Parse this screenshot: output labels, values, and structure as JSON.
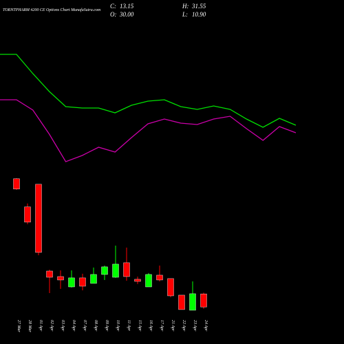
{
  "chart_data": [
    {
      "type": "candlestick",
      "title": "TORNTPHARM 4200 CE Options Chart MunafaSutra.com",
      "summary": [
        {
          "label": "C:",
          "value": "13.15"
        },
        {
          "label": "O:",
          "value": "30.00"
        },
        {
          "label": "H:",
          "value": "31.55"
        },
        {
          "label": "L:",
          "value": "10.90"
        }
      ],
      "categories": [
        "27 Mar",
        "28 Mar",
        "01 Apr",
        "02 Apr",
        "03 Apr",
        "04 Apr",
        "07 Apr",
        "08 Apr",
        "09 Apr",
        "10 Apr",
        "11 Apr",
        "15 Apr",
        "16 Apr",
        "17 Apr",
        "21 Apr",
        "22 Apr",
        "23 Apr",
        "24 Apr"
      ],
      "open": [
        178.3,
        142,
        171.2,
        59.4,
        52.3,
        39,
        50.6,
        43.5,
        55,
        51.4,
        70.1,
        48.8,
        39,
        54.1,
        49.7,
        28.4,
        8.9,
        30
      ],
      "high": [
        179,
        146.4,
        171.2,
        61.2,
        60.3,
        60.3,
        55.9,
        63.9,
        66.5,
        92.2,
        89.6,
        52.3,
        56.8,
        66.5,
        49.7,
        28.4,
        46.1,
        31.55
      ],
      "low": [
        164,
        119.7,
        79.8,
        31,
        36.4,
        38.1,
        34.6,
        43.5,
        47.9,
        50.6,
        47,
        42.6,
        39,
        46.1,
        25.7,
        9.8,
        8.9,
        10.9
      ],
      "close": [
        165,
        122.4,
        83.4,
        51.4,
        47.9,
        50.6,
        39.9,
        55,
        64.8,
        68.3,
        52.3,
        46.1,
        55,
        47.9,
        27.5,
        9.8,
        30.2,
        13.15
      ],
      "up_color": "#00ff00",
      "down_color": "#ff0000",
      "ylim": [
        0,
        187
      ]
    },
    {
      "type": "line",
      "series": [
        {
          "color": "#00e000",
          "values": [
            90.5,
            90.5,
            76.5,
            63.5,
            52.5,
            51.5,
            51.5,
            48,
            53.5,
            56.5,
            57.5,
            52.5,
            50.5,
            53,
            50.5,
            43.5,
            37.5,
            44,
            39
          ]
        },
        {
          "color": "#cc00aa",
          "values": [
            57.5,
            57.5,
            50,
            32.5,
            12.5,
            17,
            23,
            19.5,
            30,
            40,
            43.5,
            40.5,
            39.5,
            43.5,
            45.5,
            36.5,
            28,
            38,
            33.5
          ]
        }
      ],
      "ylim": [
        0,
        100
      ]
    }
  ]
}
